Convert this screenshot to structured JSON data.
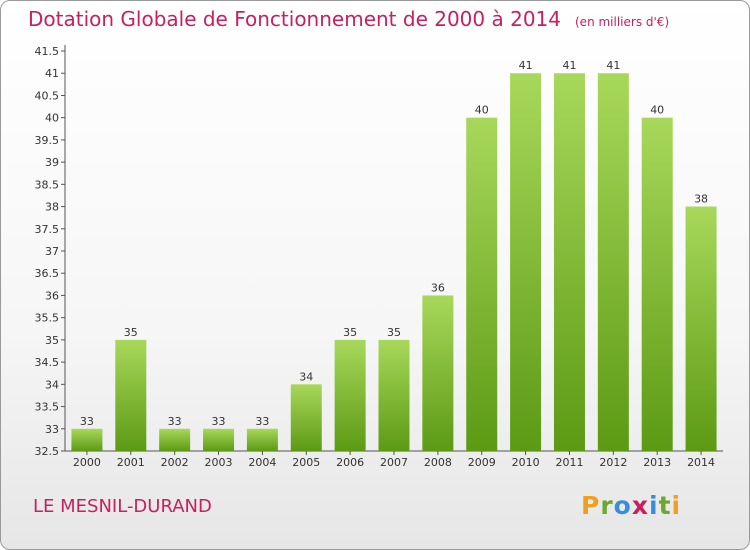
{
  "title": "Dotation Globale de Fonctionnement de 2000 à 2014",
  "unit": "(en milliers d'€)",
  "commune": "LE MESNIL-DURAND",
  "logo": [
    "P",
    "r",
    "o",
    "x",
    "i",
    "t",
    "i"
  ],
  "logo_colors": [
    "#f0a020",
    "#6aa832",
    "#3a8ed8",
    "#c8205e",
    "#3a8ed8",
    "#6aa832",
    "#f0a020"
  ],
  "colors": {
    "bar_light": "#a8d85a",
    "bar_dark": "#5c9a14",
    "title": "#c8205e"
  },
  "chart_data": {
    "type": "bar",
    "categories": [
      "2000",
      "2001",
      "2002",
      "2003",
      "2004",
      "2005",
      "2006",
      "2007",
      "2008",
      "2009",
      "2010",
      "2011",
      "2012",
      "2013",
      "2014"
    ],
    "values": [
      33,
      35,
      33,
      33,
      33,
      34,
      35,
      35,
      36,
      40,
      41,
      41,
      41,
      40,
      38
    ],
    "labels": [
      "33",
      "35",
      "33",
      "33",
      "33",
      "34",
      "35",
      "35",
      "36",
      "40",
      "41",
      "41",
      "41",
      "40",
      "38"
    ],
    "title": "Dotation Globale de Fonctionnement de 2000 à 2014",
    "xlabel": "",
    "ylabel": "",
    "ylim": [
      32.5,
      41.5
    ],
    "yticks": [
      "32.5",
      "33",
      "33.5",
      "34",
      "34.5",
      "35",
      "35.5",
      "36",
      "36.5",
      "37",
      "37.5",
      "38",
      "38.5",
      "39",
      "39.5",
      "40",
      "40.5",
      "41",
      "41.5"
    ],
    "grid": false
  }
}
